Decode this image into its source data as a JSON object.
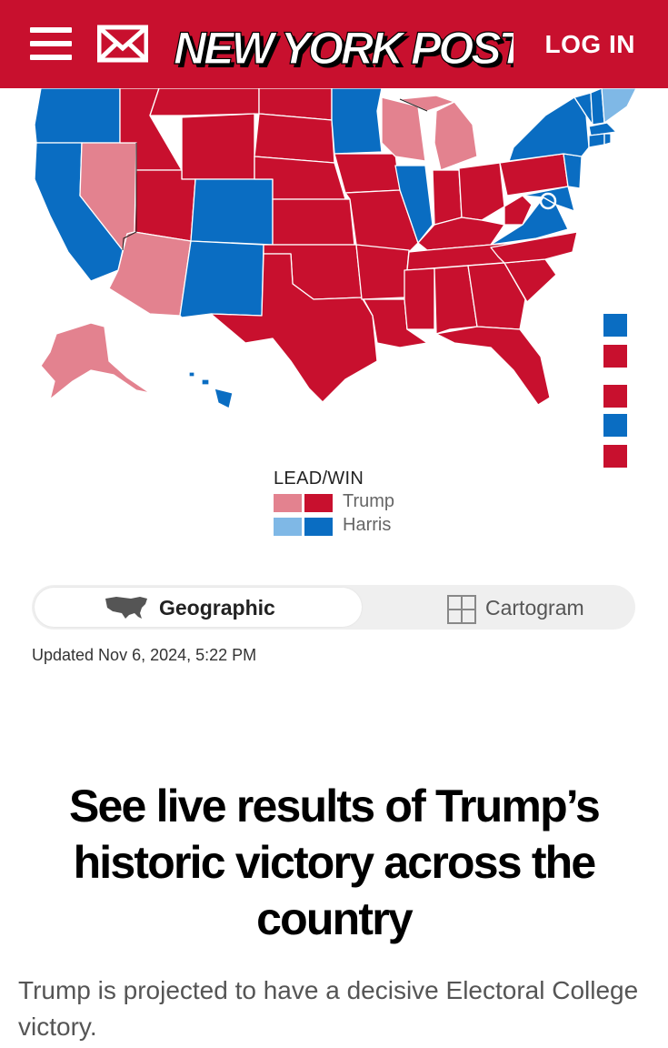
{
  "header": {
    "brand": "NEW YORK POST",
    "login_label": "LOG IN",
    "menu_icon": "hamburger-menu-icon",
    "mail_icon": "mail-icon",
    "bg_color": "#c8102e"
  },
  "colors": {
    "trump_lead": "#e3828f",
    "trump_win": "#c8102e",
    "harris_lead": "#7fb8e6",
    "harris_win": "#0a6dc2"
  },
  "legend": {
    "title": "LEAD/WIN",
    "items": [
      {
        "label": "Trump"
      },
      {
        "label": "Harris"
      }
    ]
  },
  "toggle": {
    "geographic_label": "Geographic",
    "cartogram_label": "Cartogram",
    "selected": "Geographic"
  },
  "updated": "Updated Nov 6, 2024, 5:22 PM",
  "article": {
    "headline": "See live results of Trump’s historic victory across the country",
    "subhead": "Trump is projected to have a decisive Electoral College victory."
  }
}
